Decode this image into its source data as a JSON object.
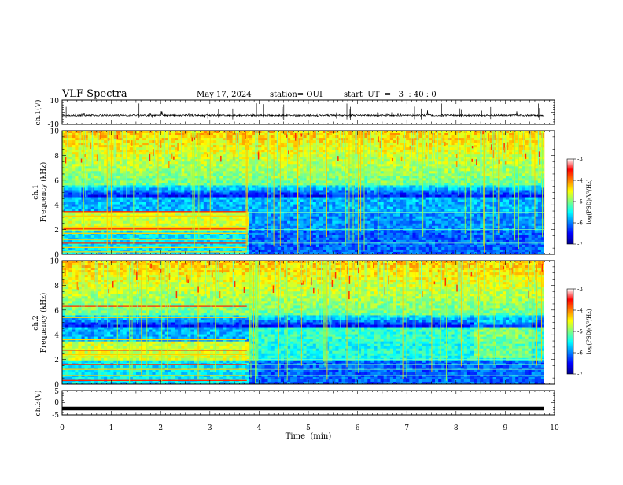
{
  "header": {
    "title": "VLF Spectra",
    "date": "May 17, 2024",
    "station": "station= OUI",
    "start": "start  UT  =   3  : 40 : 0"
  },
  "chart_data": [
    {
      "type": "line",
      "name": "ch1-waveform",
      "ylabel": "ch.1(V)",
      "ylim": [
        -10,
        10
      ],
      "yticks": [
        "10",
        "-10"
      ],
      "xlim": [
        0,
        10
      ],
      "baseline": -2.5
    },
    {
      "type": "heatmap",
      "name": "ch1-spectrogram",
      "ylabel": "ch.1\nFrequency (kHz)",
      "ylim": [
        0,
        10
      ],
      "yticks": [
        "0",
        "2",
        "4",
        "6",
        "8",
        "10"
      ],
      "xlim": [
        0,
        10
      ],
      "transition_time_min": 3.75
    },
    {
      "type": "heatmap",
      "name": "ch2-spectrogram",
      "ylabel": "ch.2\nFrequency (kHz)",
      "ylim": [
        0,
        10
      ],
      "yticks": [
        "0",
        "2",
        "4",
        "6",
        "8",
        "10"
      ],
      "xlim": [
        0,
        10
      ],
      "transition_time_min": 3.75
    },
    {
      "type": "line",
      "name": "ch3-waveform",
      "ylabel": "ch.3(V)",
      "ylim": [
        -5,
        5
      ],
      "yticks": [
        "5",
        "0",
        "-5"
      ],
      "xlim": [
        0,
        10
      ],
      "xlabel": "Time  (min)",
      "xticks": [
        "0",
        "1",
        "2",
        "3",
        "4",
        "5",
        "6",
        "7",
        "8",
        "9",
        "10"
      ],
      "baseline": -2.4
    }
  ],
  "colorbar": {
    "label": "log(PSD)(V²/Hz)",
    "ticks": [
      "-3",
      "-4",
      "-5",
      "-6",
      "-7"
    ],
    "range": [
      -7,
      -3
    ]
  }
}
